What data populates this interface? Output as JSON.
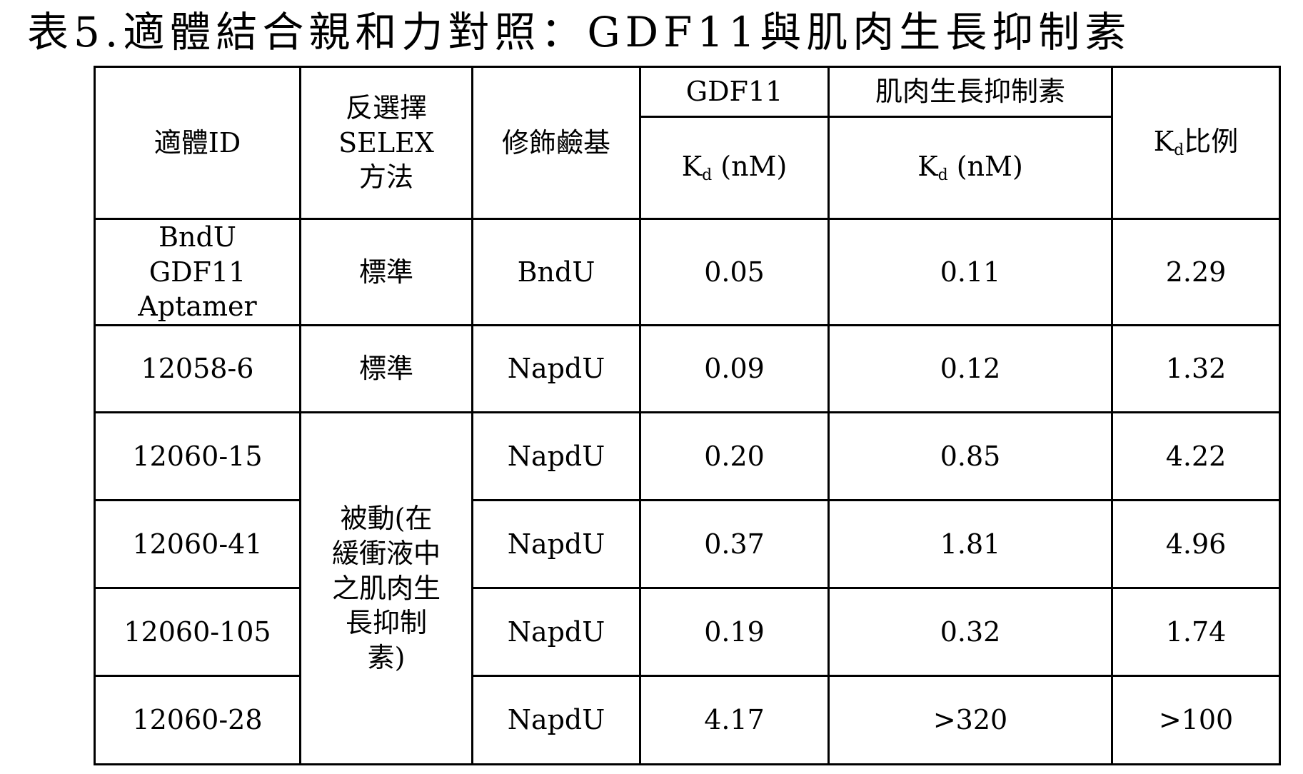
{
  "title": "表5.適體結合親和力對照：GDF11與肌肉生長抑制素",
  "headers": {
    "aptamer_id": "適體ID",
    "selex_method": [
      "反選擇",
      "SELEX",
      "方法"
    ],
    "modified_base": "修飾鹼基",
    "gdf11": "GDF11",
    "myostatin": "肌肉生長抑制素",
    "kd_symbol": "K",
    "kd_subscript": "d",
    "kd_unit": " (nM)",
    "ratio_suffix": "比例"
  },
  "rows": [
    {
      "id": [
        "BndU",
        "GDF11",
        "Aptamer"
      ],
      "method": "標準",
      "base": "BndU",
      "gdf11_kd": "0.05",
      "myostatin_kd": "0.11",
      "ratio": "2.29"
    },
    {
      "id": "12058-6",
      "method": "標準",
      "base": "NapdU",
      "gdf11_kd": "0.09",
      "myostatin_kd": "0.12",
      "ratio": "1.32"
    },
    {
      "id": "12060-15",
      "base": "NapdU",
      "gdf11_kd": "0.20",
      "myostatin_kd": "0.85",
      "ratio": "4.22"
    },
    {
      "id": "12060-41",
      "base": "NapdU",
      "gdf11_kd": "0.37",
      "myostatin_kd": "1.81",
      "ratio": "4.96"
    },
    {
      "id": "12060-105",
      "base": "NapdU",
      "gdf11_kd": "0.19",
      "myostatin_kd": "0.32",
      "ratio": "1.74"
    },
    {
      "id": "12060-28",
      "base": "NapdU",
      "gdf11_kd": "4.17",
      "myostatin_kd": ">320",
      "ratio": ">100"
    }
  ],
  "passive_method": [
    "被動(在",
    "緩衝液中",
    "之肌肉生",
    "長抑制",
    "素)"
  ]
}
